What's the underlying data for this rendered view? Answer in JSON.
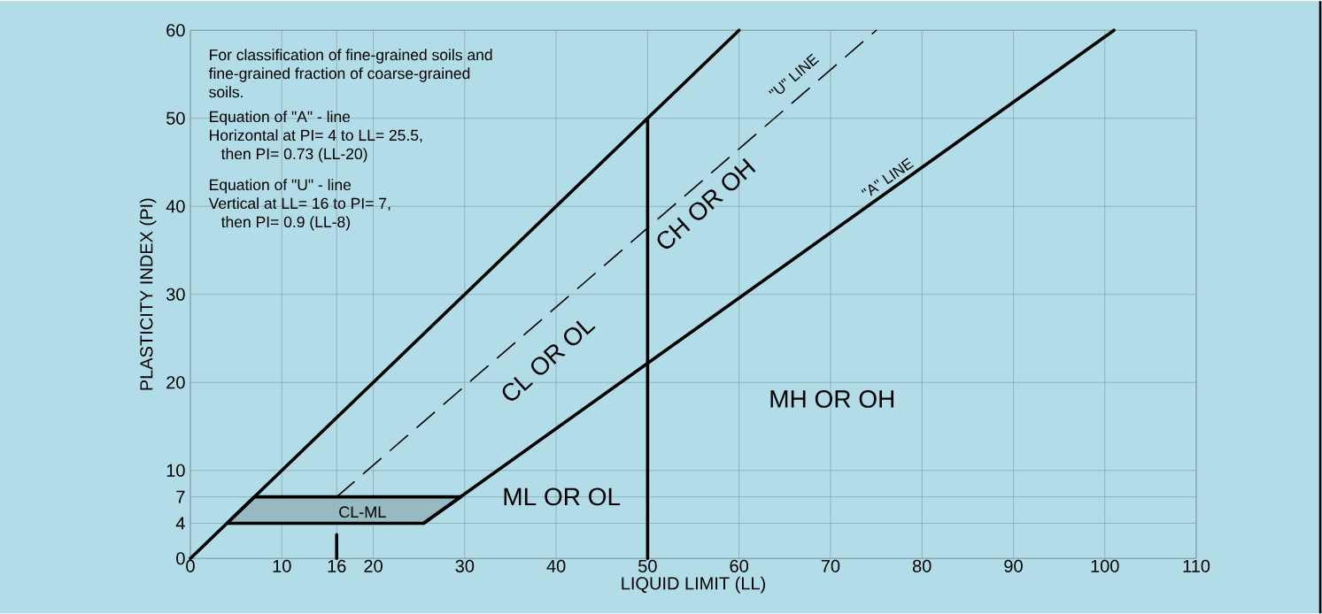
{
  "chart_data": {
    "type": "line",
    "xlabel": "LIQUID LIMIT (LL)",
    "ylabel": "PLASTICITY INDEX (PI)",
    "xlim": [
      0,
      110
    ],
    "ylim": [
      0,
      60
    ],
    "xticks": [
      0,
      10,
      16,
      20,
      30,
      40,
      50,
      60,
      70,
      80,
      90,
      100,
      110
    ],
    "yticks": [
      0,
      4,
      7,
      10,
      20,
      30,
      40,
      50,
      60
    ],
    "grid": true,
    "series": [
      {
        "color": "#000000",
        "x": [
          4,
          7,
          29.6,
          25.5,
          4
        ],
        "values": [
          4,
          7,
          7,
          4,
          4
        ],
        "type": "area"
      },
      {
        "color": "#000000",
        "x": [
          0,
          60
        ],
        "values": [
          0,
          60
        ]
      },
      {
        "color": "#000000",
        "x": [
          25.5,
          101
        ],
        "values": [
          4,
          60
        ]
      },
      {
        "color": "#000000",
        "x": [
          50,
          50
        ],
        "values": [
          0,
          50
        ]
      },
      {
        "color": "#000000",
        "x": [
          16,
          75
        ],
        "values": [
          7,
          60
        ],
        "line_style": "dashed"
      },
      {
        "color": "#000000",
        "x": [
          16,
          16
        ],
        "values": [
          0,
          2.7
        ]
      }
    ],
    "annotations": [
      "For classification of fine-grained soils and fine-grained fraction of coarse-grained soils.",
      "Equation of \"A\" - line",
      "Horizontal at PI= 4 to LL= 25.5,",
      "then PI= 0.73 (LL-20)",
      "Equation of \"U\" - line",
      "Vertical at LL= 16 to PI= 7,",
      "then PI= 0.9 (LL-8)",
      "CL OR OL",
      "CH OR OH",
      "\"U\" LINE",
      "\"A\" LINE",
      "ML OR OL",
      "MH OR OH",
      "CL-ML"
    ]
  }
}
